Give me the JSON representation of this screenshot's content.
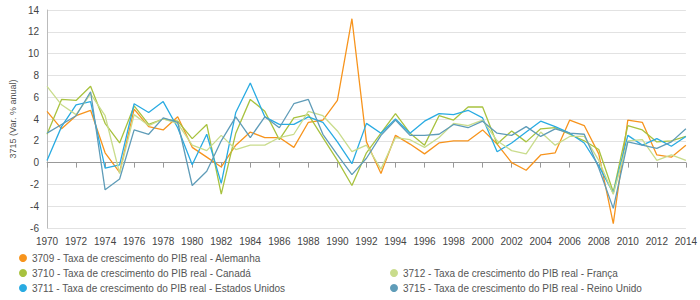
{
  "chart_data": {
    "type": "line",
    "y_label": "3715 (Var. % anual)",
    "x": [
      1970,
      1971,
      1972,
      1973,
      1974,
      1975,
      1976,
      1977,
      1978,
      1979,
      1980,
      1981,
      1982,
      1983,
      1984,
      1985,
      1986,
      1987,
      1988,
      1989,
      1990,
      1991,
      1992,
      1993,
      1994,
      1995,
      1996,
      1997,
      1998,
      1999,
      2000,
      2001,
      2002,
      2003,
      2004,
      2005,
      2006,
      2007,
      2008,
      2009,
      2010,
      2011,
      2012,
      2013,
      2014
    ],
    "xlim": [
      1970,
      2014
    ],
    "xticks": [
      1970,
      1972,
      1974,
      1976,
      1978,
      1980,
      1982,
      1984,
      1986,
      1988,
      1990,
      1992,
      1994,
      1996,
      1998,
      2000,
      2002,
      2004,
      2006,
      2008,
      2010,
      2012,
      2014
    ],
    "ylim": [
      -6,
      14
    ],
    "yticks": [
      -6,
      -4,
      -2,
      0,
      2,
      4,
      6,
      8,
      10,
      12,
      14
    ],
    "grid": true,
    "legend": "bottom",
    "marker": "none",
    "line_style": "solid",
    "series": [
      {
        "name": "3709 - Taxa de crescimento do PIB real - Alemanha",
        "color": "#f7941d",
        "values": [
          4.7,
          3.1,
          4.3,
          4.8,
          0.9,
          -0.9,
          4.9,
          3.3,
          3.0,
          4.2,
          1.4,
          0.5,
          -0.4,
          1.6,
          2.8,
          2.3,
          2.3,
          1.4,
          3.7,
          3.9,
          5.7,
          13.2,
          1.9,
          -1.0,
          2.5,
          1.7,
          0.8,
          1.8,
          2.0,
          2.0,
          3.0,
          1.7,
          0.0,
          -0.7,
          0.7,
          0.9,
          3.9,
          3.4,
          0.8,
          -5.6,
          3.9,
          3.7,
          0.7,
          0.5,
          1.6
        ]
      },
      {
        "name": "3710 - Taxa de crescimento do PIB real - Canadá",
        "color": "#a8c23f",
        "values": [
          2.6,
          5.8,
          5.7,
          7.0,
          3.6,
          1.8,
          5.2,
          3.5,
          4.0,
          3.8,
          2.2,
          3.5,
          -2.9,
          2.7,
          5.8,
          4.7,
          2.1,
          4.1,
          4.4,
          2.3,
          0.2,
          -2.1,
          0.9,
          2.7,
          4.5,
          2.7,
          1.6,
          4.3,
          3.9,
          5.1,
          5.1,
          1.7,
          2.9,
          1.9,
          3.1,
          3.2,
          2.6,
          2.0,
          1.2,
          -2.7,
          3.4,
          3.0,
          1.9,
          2.0,
          2.4
        ]
      },
      {
        "name": "3711 - Taxa de crescimento do PIB real - Estados Unidos",
        "color": "#29abe2",
        "values": [
          0.2,
          3.3,
          5.3,
          5.6,
          -0.5,
          -0.2,
          5.4,
          4.6,
          5.6,
          3.2,
          -0.2,
          2.6,
          -1.9,
          4.6,
          7.3,
          4.2,
          3.5,
          3.5,
          4.2,
          3.7,
          1.9,
          -0.1,
          3.6,
          2.7,
          4.0,
          2.7,
          3.8,
          4.5,
          4.4,
          4.8,
          4.1,
          1.0,
          1.8,
          2.8,
          3.8,
          3.3,
          2.7,
          1.8,
          -0.3,
          -2.8,
          2.5,
          1.6,
          2.2,
          1.5,
          2.4
        ]
      },
      {
        "name": "3712 - Taxa de crescimento do PIB real - França",
        "color": "#c9dc8c",
        "values": [
          7.0,
          5.3,
          4.4,
          6.3,
          4.3,
          -1.0,
          4.4,
          3.4,
          4.0,
          3.6,
          1.6,
          1.1,
          2.5,
          1.2,
          1.6,
          1.6,
          2.3,
          2.6,
          4.7,
          4.3,
          2.9,
          1.0,
          1.6,
          -0.6,
          2.3,
          2.1,
          1.4,
          2.3,
          3.6,
          3.4,
          3.9,
          2.0,
          1.1,
          0.8,
          2.8,
          1.6,
          2.4,
          2.4,
          0.2,
          -2.9,
          2.0,
          2.1,
          0.2,
          0.7,
          0.2
        ]
      },
      {
        "name": "3715 - Taxa de crescimento do PIB real - Reino Unido",
        "color": "#5f9cb8",
        "values": [
          2.7,
          3.5,
          4.3,
          6.5,
          -2.5,
          -1.5,
          3.0,
          2.6,
          4.1,
          3.7,
          -2.1,
          -0.8,
          2.0,
          4.2,
          2.3,
          4.2,
          3.2,
          5.4,
          5.8,
          2.6,
          0.7,
          -1.1,
          0.4,
          2.5,
          3.9,
          2.5,
          2.5,
          2.6,
          3.5,
          3.2,
          3.8,
          2.7,
          2.5,
          3.3,
          2.4,
          3.1,
          2.7,
          2.6,
          -0.5,
          -4.2,
          1.9,
          1.6,
          1.3,
          1.9,
          3.1
        ]
      }
    ]
  }
}
